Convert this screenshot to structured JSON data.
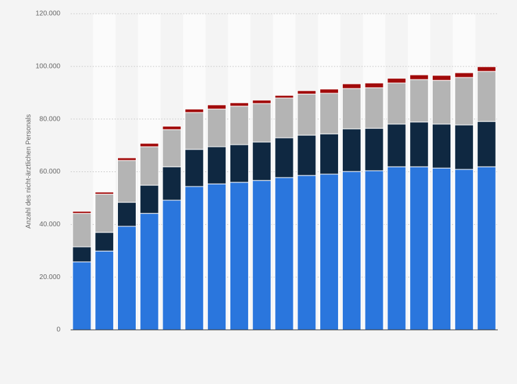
{
  "chart_data": {
    "type": "stacked_bar",
    "y_label": "Anzahl des nicht-ärztlichen Personals",
    "categories": [
      null,
      null,
      null,
      null,
      null,
      null,
      null,
      null,
      null,
      null,
      null,
      null,
      null,
      null,
      null,
      null,
      null,
      null,
      null
    ],
    "series": [
      {
        "color": "#2a76dd",
        "values": [
          25800,
          29900,
          39300,
          44200,
          49200,
          54400,
          55400,
          56000,
          56700,
          57800,
          58600,
          59100,
          60100,
          60400,
          61900,
          61900,
          61400,
          60900,
          61900
        ]
      },
      {
        "color": "#0f2841",
        "values": [
          5700,
          7100,
          9100,
          10700,
          12700,
          14100,
          14100,
          14300,
          14600,
          15100,
          15300,
          15300,
          16200,
          16100,
          16200,
          17000,
          16700,
          16900,
          17200
        ]
      },
      {
        "color": "#b4b4b4",
        "values": [
          12700,
          14500,
          15900,
          14600,
          14100,
          14000,
          14300,
          14600,
          14600,
          15100,
          15600,
          15400,
          15300,
          15400,
          15600,
          16100,
          16600,
          18000,
          19000
        ]
      },
      {
        "color": "#a10a0a",
        "values": [
          800,
          800,
          1000,
          1300,
          1300,
          1300,
          1600,
          1300,
          1300,
          1000,
          1300,
          1600,
          1800,
          1800,
          1800,
          1800,
          1900,
          1800,
          1800
        ]
      }
    ],
    "ylim": [
      0,
      120000
    ],
    "yticks": [
      0,
      {
        "value": 20000,
        "label": "20.000"
      },
      {
        "value": 40000,
        "label": "40.000"
      },
      {
        "value": 60000,
        "label": "60.000"
      },
      {
        "value": 80000,
        "label": "80.000"
      },
      {
        "value": 100000,
        "label": "100.000"
      },
      {
        "value": 120000,
        "label": "120.000"
      }
    ],
    "grid": true
  }
}
